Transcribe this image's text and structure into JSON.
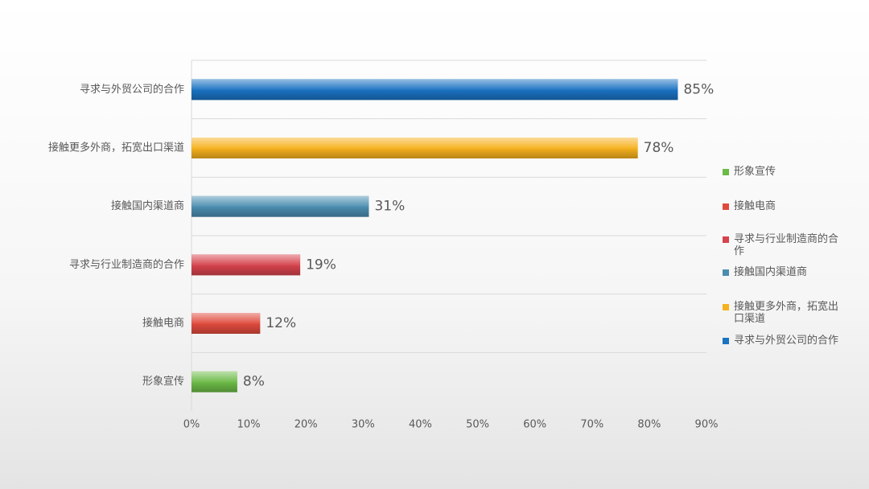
{
  "chart_data": {
    "type": "bar",
    "orientation": "horizontal",
    "categories": [
      "寻求与外贸公司的合作",
      "接触更多外商，拓宽出口渠道",
      "接触国内渠道商",
      "寻求与行业制造商的合作",
      "接触电商",
      "形象宣传"
    ],
    "values": [
      85,
      78,
      31,
      19,
      12,
      8
    ],
    "value_labels": [
      "85%",
      "78%",
      "31%",
      "19%",
      "12%",
      "8%"
    ],
    "colors": [
      "#1a72c2",
      "#f6b11e",
      "#4b8db0",
      "#d6434d",
      "#e04a3d",
      "#6cba47"
    ],
    "xlim": [
      0,
      90
    ],
    "xticks": [
      {
        "value": 0,
        "label": "0%"
      },
      {
        "value": 10,
        "label": "10%"
      },
      {
        "value": 20,
        "label": "20%"
      },
      {
        "value": 30,
        "label": "30%"
      },
      {
        "value": 40,
        "label": "40%"
      },
      {
        "value": 50,
        "label": "50%"
      },
      {
        "value": 60,
        "label": "60%"
      },
      {
        "value": 70,
        "label": "70%"
      },
      {
        "value": 80,
        "label": "80%"
      },
      {
        "value": 90,
        "label": "90%"
      }
    ],
    "grid": true,
    "legend": "right"
  }
}
